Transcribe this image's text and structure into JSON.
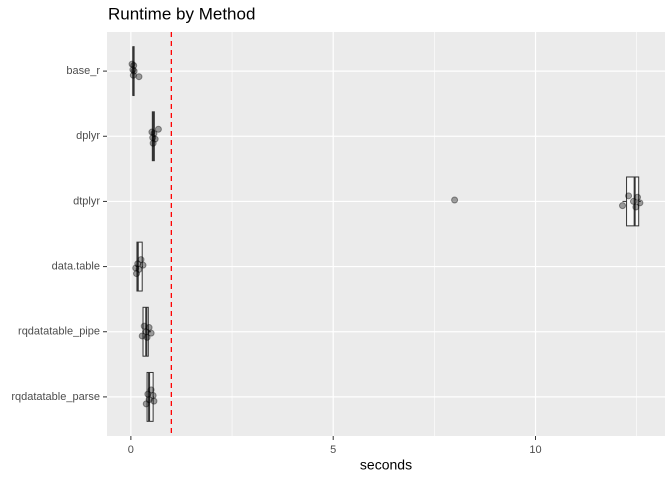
{
  "chart_data": {
    "type": "box",
    "title": "Runtime by Method",
    "x_label": "seconds",
    "categories": [
      "base_r",
      "dplyr",
      "dtplyr",
      "data.table",
      "rqdatatable_pipe",
      "rqdatatable_parse"
    ],
    "boxes": [
      {
        "min": 0.03,
        "q1": 0.05,
        "median": 0.06,
        "q3": 0.08,
        "max": 0.1,
        "points": [
          0.03,
          0.05,
          0.06,
          0.07,
          0.08,
          0.2
        ]
      },
      {
        "min": 0.52,
        "q1": 0.53,
        "median": 0.55,
        "q3": 0.58,
        "max": 0.6,
        "points": [
          0.52,
          0.54,
          0.55,
          0.57,
          0.6,
          0.68
        ]
      },
      {
        "min": 12.15,
        "q1": 12.25,
        "median": 12.45,
        "q3": 12.55,
        "max": 12.6,
        "points": [
          8.0,
          12.15,
          12.3,
          12.42,
          12.48,
          12.52,
          12.58
        ]
      },
      {
        "min": 0.12,
        "q1": 0.15,
        "median": 0.17,
        "q3": 0.28,
        "max": 0.3,
        "points": [
          0.12,
          0.14,
          0.17,
          0.2,
          0.25,
          0.3
        ]
      },
      {
        "min": 0.28,
        "q1": 0.3,
        "median": 0.38,
        "q3": 0.43,
        "max": 0.5,
        "points": [
          0.28,
          0.33,
          0.38,
          0.4,
          0.45,
          0.5
        ]
      },
      {
        "min": 0.38,
        "q1": 0.4,
        "median": 0.45,
        "q3": 0.55,
        "max": 0.57,
        "points": [
          0.38,
          0.42,
          0.45,
          0.5,
          0.55,
          0.57
        ]
      }
    ],
    "reference_line": 1,
    "reference_color": "#ff0000",
    "xlim": [
      -0.59,
      13.2
    ],
    "xticks": [
      0,
      5,
      10
    ],
    "minor_xticks": [
      2.5,
      7.5,
      12.5
    ],
    "grid": true,
    "panel_color": "#ebebeb",
    "box_color": "#333333",
    "point_color": "#000000"
  }
}
